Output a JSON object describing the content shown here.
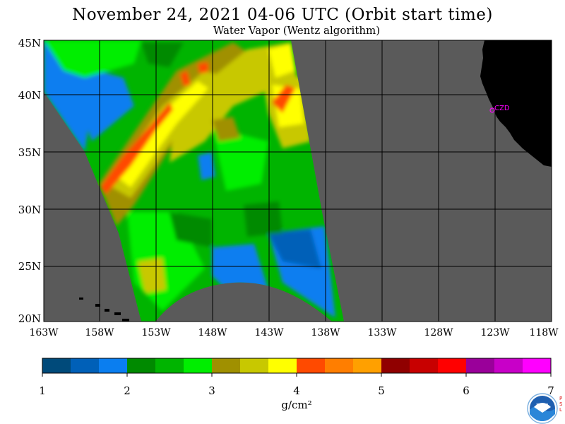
{
  "header": {
    "title": "November 24, 2021  04-06 UTC  (Orbit start time)",
    "subtitle": "Water Vapor (Wentz algorithm)"
  },
  "map": {
    "latitude_labels": [
      "45N",
      "40N",
      "35N",
      "30N",
      "25N",
      "20N"
    ],
    "longitude_labels": [
      "163W",
      "158W",
      "153W",
      "148W",
      "143W",
      "138W",
      "133W",
      "128W",
      "123W",
      "118W"
    ],
    "station_label": "CZD",
    "colors": {
      "no_data": "#5a5a5a",
      "land": "#000000",
      "station": "#ff00ff",
      "grid": "#000000"
    }
  },
  "colorbar": {
    "units": "g/cm²",
    "tick_labels": [
      "1",
      "2",
      "3",
      "4",
      "5",
      "6",
      "7"
    ],
    "colors": [
      "#004a7a",
      "#0060b8",
      "#0a7ef0",
      "#008a00",
      "#00b400",
      "#00ee00",
      "#a09000",
      "#c8c800",
      "#ffff00",
      "#ff4a00",
      "#ff7e00",
      "#ffa000",
      "#900000",
      "#c80000",
      "#ff0000",
      "#9a009a",
      "#c800c8",
      "#ff00ff"
    ]
  },
  "logo": {
    "text": "NOAA",
    "side_text": "PSL"
  }
}
